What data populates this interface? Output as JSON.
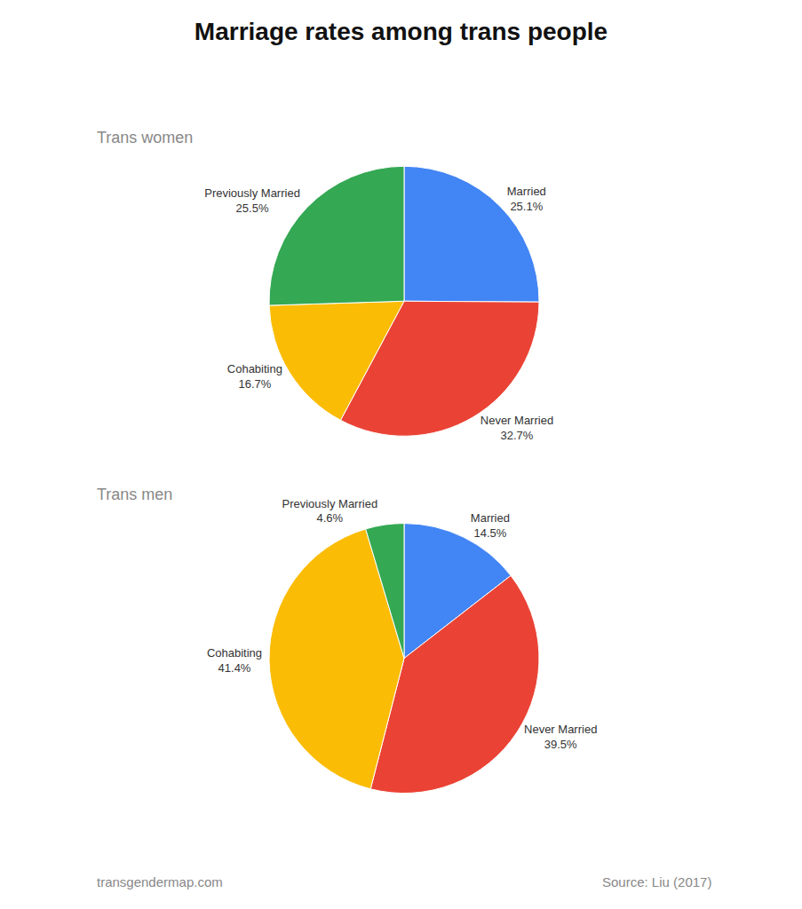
{
  "title": "Marriage rates among trans people",
  "annotations": [
    "transgendermap.com",
    "Source: Liu (2017)"
  ],
  "chart_data": [
    {
      "type": "pie",
      "subtitle": "Trans women",
      "categories": [
        "Married",
        "Never Married",
        "Cohabiting",
        "Previously Married"
      ],
      "values": [
        25.1,
        32.7,
        16.7,
        25.5
      ],
      "value_labels": [
        "25.1%",
        "32.7%",
        "16.7%",
        "25.5%"
      ],
      "colors": [
        "#4285F4",
        "#EA4335",
        "#FBBC05",
        "#34A853"
      ]
    },
    {
      "type": "pie",
      "subtitle": "Trans men",
      "categories": [
        "Married",
        "Never Married",
        "Cohabiting",
        "Previously Married"
      ],
      "values": [
        14.5,
        39.5,
        41.4,
        4.6
      ],
      "value_labels": [
        "14.5%",
        "39.5%",
        "41.4%",
        "4.6%"
      ],
      "colors": [
        "#4285F4",
        "#EA4335",
        "#FBBC05",
        "#34A853"
      ]
    }
  ]
}
